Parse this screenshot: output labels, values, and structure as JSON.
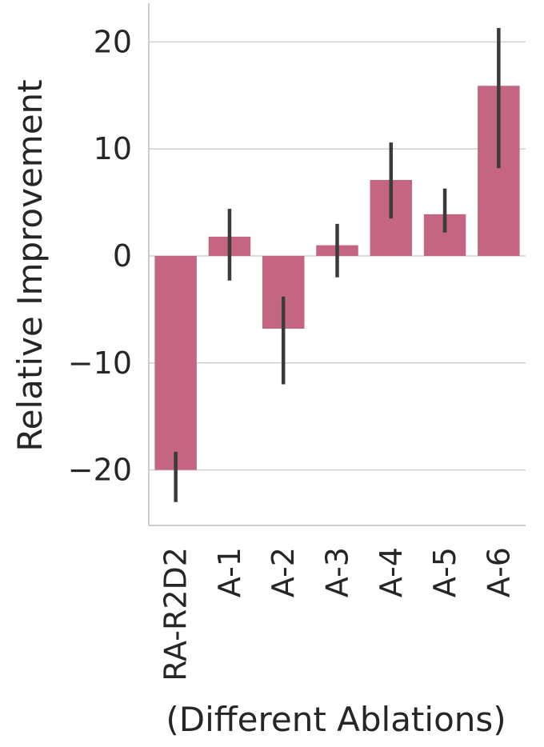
{
  "chart_data": {
    "type": "bar",
    "title": "",
    "xlabel": "(Different Ablations)",
    "ylabel": "Relative Improvement",
    "categories": [
      "RA-R2D2",
      "A-1",
      "A-2",
      "A-3",
      "A-4",
      "A-5",
      "A-6"
    ],
    "values": [
      -20,
      1.8,
      -6.8,
      1.0,
      7.1,
      3.9,
      15.9
    ],
    "error_low": [
      -23.0,
      -2.3,
      -12.0,
      -2.0,
      3.5,
      2.2,
      8.2
    ],
    "error_high": [
      -18.3,
      4.4,
      -3.8,
      3.0,
      10.6,
      6.3,
      21.3
    ],
    "ylim": [
      -25,
      23.5
    ],
    "yticks": [
      20,
      10,
      0,
      -10,
      -20
    ],
    "ytick_labels": [
      "20",
      "10",
      "0",
      "−10",
      "−20"
    ],
    "grid": true,
    "bar_color": "#c46682",
    "error_color": "#3b3b3b",
    "grid_color": "#d0d0d0",
    "axis_color": "#cccccc"
  }
}
